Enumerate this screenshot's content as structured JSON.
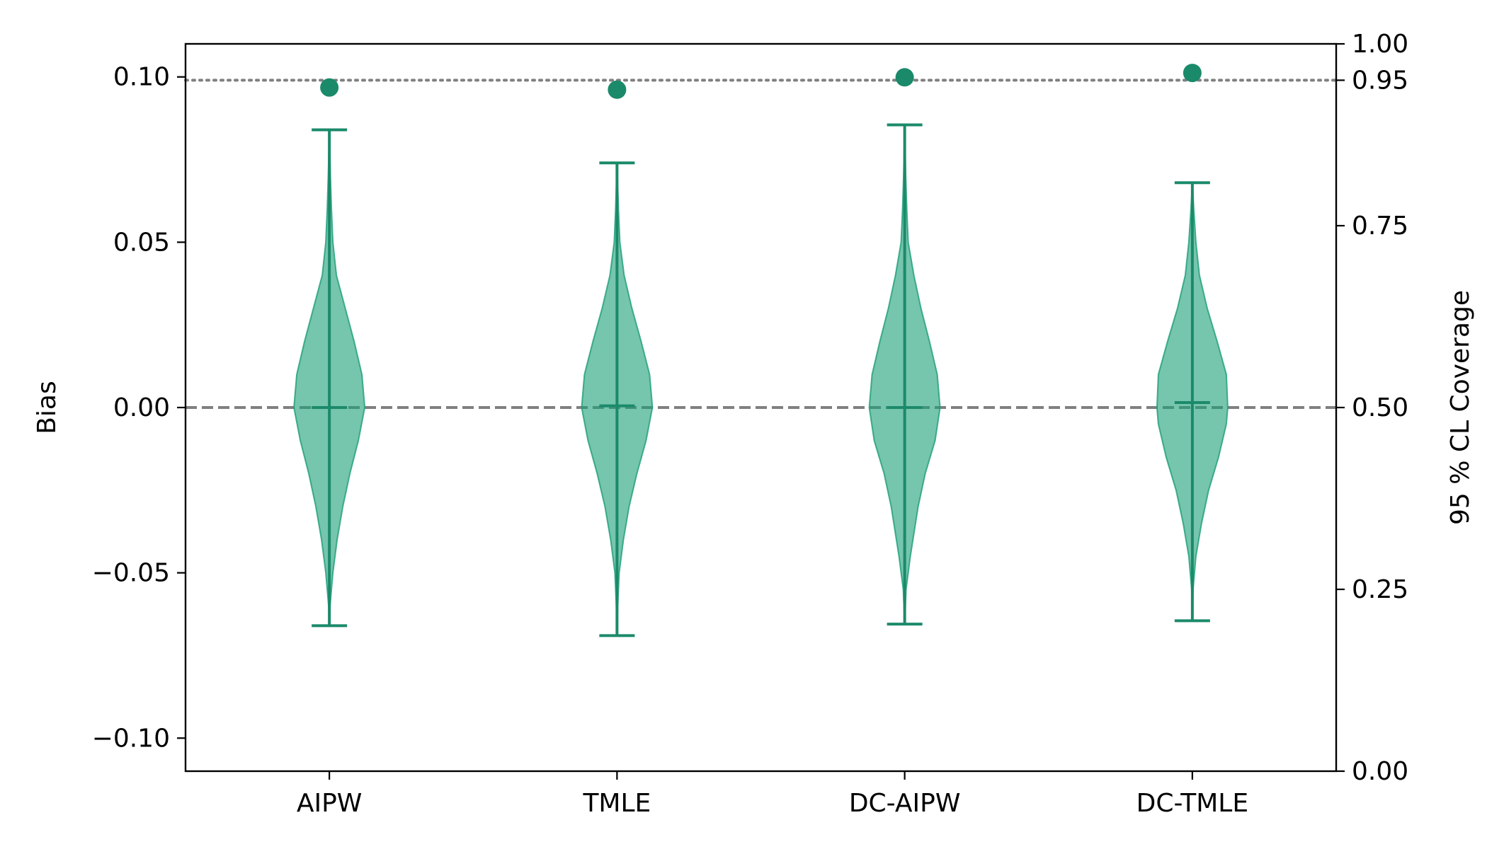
{
  "chart_data": {
    "type": "violin",
    "categories": [
      "AIPW",
      "TMLE",
      "DC-AIPW",
      "DC-TMLE"
    ],
    "left_axis": {
      "label": "Bias",
      "ylim": [
        -0.11,
        0.11
      ],
      "ticks": [
        -0.1,
        -0.05,
        0.0,
        0.05,
        0.1
      ],
      "tick_labels": [
        "−0.10",
        "−0.05",
        "0.00",
        "0.05",
        "0.10"
      ]
    },
    "right_axis": {
      "label": "95 % CL Coverage",
      "ylim": [
        0.0,
        1.0
      ],
      "ticks": [
        0.0,
        0.25,
        0.5,
        0.75,
        0.95,
        1.0
      ],
      "tick_labels": [
        "0.00",
        "0.25",
        "0.50",
        "0.75",
        "0.95",
        "1.00"
      ]
    },
    "reference_lines": [
      {
        "axis": "left",
        "value": 0.0,
        "style": "dashed",
        "color": "#808080"
      },
      {
        "axis": "right",
        "value": 0.95,
        "style": "dotted",
        "color": "#808080"
      }
    ],
    "violins": [
      {
        "category": "AIPW",
        "min": -0.066,
        "max": 0.084,
        "mean": 0.0,
        "profile": [
          [
            -0.066,
            0.0
          ],
          [
            -0.06,
            0.02
          ],
          [
            -0.05,
            0.1
          ],
          [
            -0.04,
            0.22
          ],
          [
            -0.03,
            0.38
          ],
          [
            -0.02,
            0.58
          ],
          [
            -0.01,
            0.82
          ],
          [
            0.0,
            1.0
          ],
          [
            0.01,
            0.92
          ],
          [
            0.02,
            0.7
          ],
          [
            0.03,
            0.45
          ],
          [
            0.04,
            0.2
          ],
          [
            0.05,
            0.1
          ],
          [
            0.06,
            0.06
          ],
          [
            0.07,
            0.03
          ],
          [
            0.084,
            0.0
          ]
        ]
      },
      {
        "category": "TMLE",
        "min": -0.069,
        "max": 0.074,
        "mean": 0.0005,
        "profile": [
          [
            -0.069,
            0.0
          ],
          [
            -0.06,
            0.02
          ],
          [
            -0.05,
            0.06
          ],
          [
            -0.04,
            0.18
          ],
          [
            -0.03,
            0.34
          ],
          [
            -0.02,
            0.56
          ],
          [
            -0.01,
            0.82
          ],
          [
            0.0,
            1.0
          ],
          [
            0.01,
            0.92
          ],
          [
            0.02,
            0.68
          ],
          [
            0.03,
            0.42
          ],
          [
            0.04,
            0.2
          ],
          [
            0.05,
            0.08
          ],
          [
            0.06,
            0.04
          ],
          [
            0.074,
            0.0
          ]
        ]
      },
      {
        "category": "DC-AIPW",
        "min": -0.0655,
        "max": 0.0855,
        "mean": 0.0,
        "profile": [
          [
            -0.0655,
            0.0
          ],
          [
            -0.055,
            0.04
          ],
          [
            -0.045,
            0.16
          ],
          [
            -0.03,
            0.38
          ],
          [
            -0.02,
            0.58
          ],
          [
            -0.01,
            0.86
          ],
          [
            0.0,
            1.0
          ],
          [
            0.01,
            0.92
          ],
          [
            0.02,
            0.7
          ],
          [
            0.03,
            0.46
          ],
          [
            0.04,
            0.26
          ],
          [
            0.05,
            0.1
          ],
          [
            0.06,
            0.06
          ],
          [
            0.07,
            0.03
          ],
          [
            0.0855,
            0.0
          ]
        ]
      },
      {
        "category": "DC-TMLE",
        "min": -0.0645,
        "max": 0.068,
        "mean": 0.0015,
        "profile": [
          [
            -0.0645,
            0.0
          ],
          [
            -0.055,
            0.02
          ],
          [
            -0.045,
            0.1
          ],
          [
            -0.035,
            0.26
          ],
          [
            -0.025,
            0.46
          ],
          [
            -0.015,
            0.74
          ],
          [
            -0.005,
            0.96
          ],
          [
            0.0,
            1.0
          ],
          [
            0.01,
            0.96
          ],
          [
            0.02,
            0.7
          ],
          [
            0.03,
            0.42
          ],
          [
            0.04,
            0.2
          ],
          [
            0.05,
            0.1
          ],
          [
            0.06,
            0.04
          ],
          [
            0.068,
            0.0
          ]
        ]
      }
    ],
    "coverage_points": [
      {
        "category": "AIPW",
        "value": 0.94
      },
      {
        "category": "TMLE",
        "value": 0.937
      },
      {
        "category": "DC-AIPW",
        "value": 0.954
      },
      {
        "category": "DC-TMLE",
        "value": 0.96
      }
    ],
    "colors": {
      "violin_fill": "#1b9e77",
      "violin_fill_opacity": 0.6,
      "lines": "#1b8a6a",
      "points": "#1b8a6a"
    }
  }
}
